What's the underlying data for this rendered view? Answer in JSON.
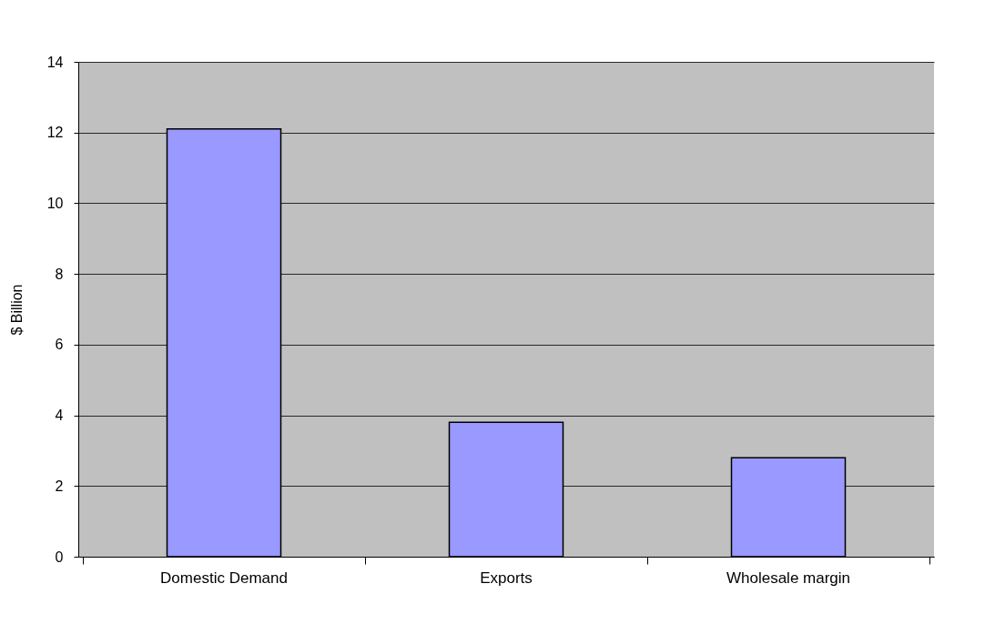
{
  "chart_data": {
    "type": "bar",
    "ylabel": "$ Billion",
    "categories": [
      "Domestic Demand",
      "Exports",
      "Wholesale margin"
    ],
    "values": [
      12.1,
      3.8,
      2.8
    ],
    "color": "#9999ff",
    "ylim": [
      0,
      14
    ],
    "yticks": [
      0,
      2,
      4,
      6,
      8,
      10,
      12,
      14
    ],
    "grid": "y"
  }
}
